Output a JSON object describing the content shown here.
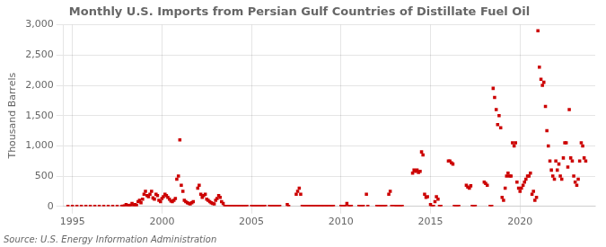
{
  "chart_data": {
    "type": "scatter",
    "title": "Monthly U.S. Imports from Persian Gulf Countries of Distillate Fuel Oil",
    "y_label": "Thousand Barrels",
    "annotations": [
      "Source: U.S. Energy Information Administration"
    ],
    "color": "#CC0000",
    "marker": "square",
    "grid": true,
    "xlim": [
      1994.5,
      2024.2
    ],
    "ylim": [
      0,
      3000
    ],
    "xticks": [
      1995,
      2000,
      2005,
      2010,
      2015,
      2020
    ],
    "yticks": [
      0,
      500,
      {
        "value": 1000,
        "label": "1,000"
      },
      {
        "value": 1500,
        "label": "1,500"
      },
      {
        "value": 2000,
        "label": "2,000"
      },
      {
        "value": 2500,
        "label": "2,500"
      },
      {
        "value": 3000,
        "label": "3,000"
      }
    ],
    "x": [
      1994.75,
      1995.0,
      1995.25,
      1995.5,
      1995.75,
      1996.0,
      1996.25,
      1996.5,
      1996.75,
      1997.0,
      1997.25,
      1997.5,
      1997.75,
      1997.83,
      1997.92,
      1998.0,
      1998.08,
      1998.17,
      1998.25,
      1998.33,
      1998.42,
      1998.5,
      1998.58,
      1998.67,
      1998.75,
      1998.83,
      1998.92,
      1999.0,
      1999.08,
      1999.17,
      1999.25,
      1999.33,
      1999.42,
      1999.5,
      1999.58,
      1999.67,
      1999.75,
      1999.83,
      1999.92,
      2000.0,
      2000.08,
      2000.17,
      2000.25,
      2000.33,
      2000.42,
      2000.5,
      2000.58,
      2000.67,
      2000.75,
      2000.83,
      2000.92,
      2001.0,
      2001.08,
      2001.17,
      2001.25,
      2001.33,
      2001.42,
      2001.5,
      2001.58,
      2001.67,
      2001.75,
      2002.0,
      2002.08,
      2002.17,
      2002.25,
      2002.33,
      2002.42,
      2002.5,
      2002.58,
      2002.67,
      2002.75,
      2002.83,
      2002.92,
      2003.0,
      2003.08,
      2003.17,
      2003.25,
      2003.33,
      2003.42,
      2003.5,
      2003.58,
      2003.67,
      2003.75,
      2003.83,
      2003.92,
      2004.0,
      2004.08,
      2004.17,
      2004.25,
      2004.33,
      2004.42,
      2004.5,
      2004.58,
      2004.67,
      2004.75,
      2005.0,
      2005.08,
      2005.17,
      2005.25,
      2005.33,
      2005.42,
      2005.5,
      2005.58,
      2005.67,
      2005.75,
      2006.0,
      2006.08,
      2006.17,
      2006.25,
      2006.33,
      2006.42,
      2006.5,
      2006.58,
      2007.0,
      2007.08,
      2007.5,
      2007.58,
      2007.67,
      2007.75,
      2007.83,
      2007.92,
      2008.0,
      2008.08,
      2008.17,
      2008.25,
      2008.33,
      2008.42,
      2008.5,
      2008.58,
      2008.67,
      2008.75,
      2008.83,
      2008.92,
      2009.0,
      2009.08,
      2009.17,
      2009.25,
      2009.33,
      2009.42,
      2009.5,
      2009.58,
      2010.0,
      2010.08,
      2010.17,
      2010.25,
      2010.33,
      2010.42,
      2010.5,
      2010.58,
      2011.0,
      2011.08,
      2011.17,
      2011.25,
      2011.42,
      2011.5,
      2012.0,
      2012.08,
      2012.17,
      2012.25,
      2012.33,
      2012.42,
      2012.5,
      2012.67,
      2012.75,
      2012.83,
      2013.0,
      2013.08,
      2013.17,
      2013.25,
      2013.33,
      2013.42,
      2014.0,
      2014.08,
      2014.17,
      2014.25,
      2014.33,
      2014.42,
      2014.5,
      2014.58,
      2014.67,
      2014.75,
      2014.83,
      2015.0,
      2015.08,
      2015.17,
      2015.25,
      2015.33,
      2015.42,
      2015.5,
      2015.58,
      2016.0,
      2016.08,
      2016.17,
      2016.25,
      2016.33,
      2016.42,
      2016.5,
      2016.58,
      2017.0,
      2017.08,
      2017.17,
      2017.25,
      2017.33,
      2017.42,
      2017.5,
      2018.0,
      2018.08,
      2018.17,
      2018.33,
      2018.42,
      2018.5,
      2018.58,
      2018.67,
      2018.75,
      2018.83,
      2018.92,
      2019.0,
      2019.08,
      2019.17,
      2019.25,
      2019.33,
      2019.42,
      2019.5,
      2019.58,
      2019.67,
      2019.75,
      2019.83,
      2019.92,
      2020.0,
      2020.08,
      2020.17,
      2020.25,
      2020.33,
      2020.42,
      2020.5,
      2020.58,
      2020.67,
      2020.75,
      2020.83,
      2020.92,
      2021.0,
      2021.08,
      2021.17,
      2021.25,
      2021.33,
      2021.42,
      2021.5,
      2021.58,
      2021.67,
      2021.75,
      2021.83,
      2021.92,
      2022.0,
      2022.08,
      2022.17,
      2022.25,
      2022.33,
      2022.42,
      2022.5,
      2022.58,
      2022.67,
      2022.75,
      2022.83,
      2022.92,
      2023.0,
      2023.08,
      2023.17,
      2023.25,
      2023.33,
      2023.42,
      2023.5,
      2023.58,
      2023.67
    ],
    "values": [
      0,
      0,
      0,
      0,
      0,
      0,
      0,
      0,
      0,
      0,
      0,
      0,
      0,
      5,
      8,
      30,
      10,
      15,
      20,
      50,
      20,
      30,
      15,
      80,
      100,
      60,
      120,
      200,
      250,
      180,
      160,
      200,
      250,
      140,
      120,
      200,
      180,
      100,
      80,
      130,
      160,
      200,
      180,
      150,
      120,
      90,
      80,
      100,
      130,
      450,
      500,
      1100,
      350,
      250,
      100,
      80,
      60,
      50,
      40,
      60,
      80,
      300,
      350,
      200,
      150,
      180,
      200,
      120,
      100,
      80,
      60,
      50,
      40,
      100,
      130,
      180,
      150,
      80,
      50,
      0,
      0,
      0,
      0,
      0,
      0,
      0,
      0,
      0,
      0,
      0,
      0,
      0,
      0,
      0,
      0,
      0,
      0,
      0,
      0,
      0,
      0,
      0,
      0,
      0,
      0,
      0,
      0,
      0,
      0,
      0,
      0,
      0,
      0,
      30,
      0,
      200,
      250,
      300,
      200,
      0,
      0,
      0,
      0,
      0,
      0,
      0,
      0,
      0,
      0,
      0,
      0,
      0,
      0,
      0,
      0,
      0,
      0,
      0,
      0,
      0,
      0,
      0,
      0,
      0,
      0,
      50,
      0,
      0,
      0,
      0,
      0,
      0,
      0,
      200,
      0,
      0,
      0,
      0,
      0,
      0,
      0,
      0,
      200,
      250,
      0,
      0,
      0,
      0,
      0,
      0,
      0,
      550,
      600,
      580,
      600,
      560,
      580,
      900,
      850,
      200,
      150,
      160,
      30,
      0,
      0,
      80,
      160,
      120,
      0,
      0,
      750,
      750,
      720,
      700,
      0,
      0,
      0,
      0,
      350,
      320,
      300,
      340,
      0,
      0,
      0,
      400,
      380,
      350,
      0,
      0,
      1950,
      1800,
      1600,
      1350,
      1500,
      1300,
      150,
      100,
      300,
      500,
      550,
      500,
      500,
      1050,
      1000,
      1050,
      400,
      300,
      250,
      300,
      350,
      400,
      450,
      500,
      500,
      550,
      200,
      250,
      100,
      150,
      2900,
      2300,
      2100,
      2000,
      2050,
      1650,
      1250,
      1000,
      750,
      600,
      500,
      450,
      750,
      600,
      700,
      500,
      450,
      800,
      1050,
      1050,
      650,
      1600,
      800,
      750,
      500,
      400,
      350,
      450,
      750,
      1050,
      1000,
      800,
      750
    ]
  }
}
